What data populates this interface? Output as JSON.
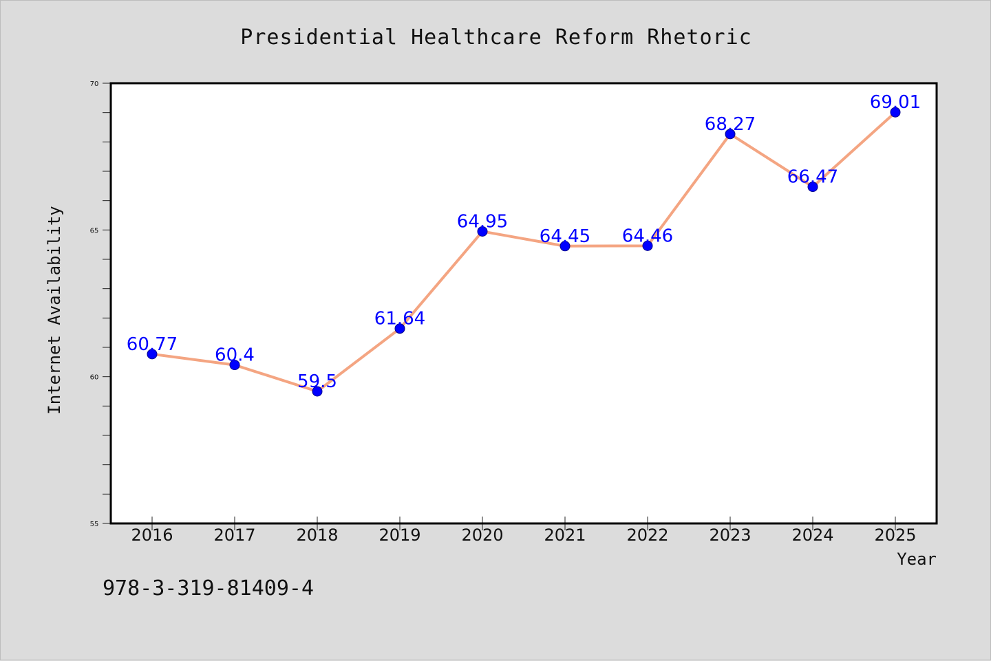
{
  "chart_data": {
    "type": "line",
    "title": "Presidential Healthcare Reform Rhetoric",
    "xlabel": "Year",
    "ylabel": "Internet Availability",
    "categories": [
      "2016",
      "2017",
      "2018",
      "2019",
      "2020",
      "2021",
      "2022",
      "2023",
      "2024",
      "2025"
    ],
    "series": [
      {
        "values": [
          60.77,
          60.4,
          59.5,
          61.64,
          64.95,
          64.45,
          64.46,
          68.27,
          66.47,
          69.01
        ],
        "labels": [
          "60.77",
          "60.4",
          "59.5",
          "61.64",
          "64.95",
          "64.45",
          "64.46",
          "68.27",
          "66.47",
          "69.01"
        ],
        "line_color": "#f4a582",
        "marker_color": "#0000ff"
      }
    ],
    "ylim": [
      55,
      70
    ],
    "yticks": [
      55,
      60,
      65,
      70
    ],
    "grid": false,
    "legend": "none"
  },
  "footer": {
    "isbn": "978-3-319-81409-4"
  }
}
